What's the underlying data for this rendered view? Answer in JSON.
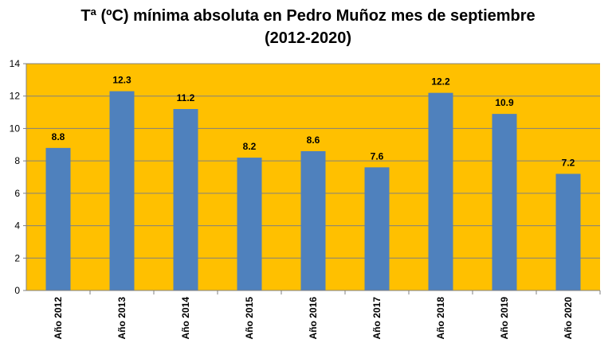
{
  "chart_data": {
    "type": "bar",
    "title_line1": "Tª (ºC) mínima absoluta en Pedro Muñoz mes de septiembre",
    "title_line2": "(2012-2020)",
    "categories": [
      "Año 2012",
      "Año 2013",
      "Año 2014",
      "Año 2015",
      "Año 2016",
      "Año 2017",
      "Año 2018",
      "Año 2019",
      "Año 2020"
    ],
    "values": [
      8.8,
      12.3,
      11.2,
      8.2,
      8.6,
      7.6,
      12.2,
      10.9,
      7.2
    ],
    "data_labels": [
      "8.8",
      "12.3",
      "11.2",
      "8.2",
      "8.6",
      "7.6",
      "12.2",
      "10.9",
      "7.2"
    ],
    "y_ticks": [
      "0",
      "2",
      "4",
      "6",
      "8",
      "10",
      "12",
      "14"
    ],
    "ylim": [
      0,
      14
    ],
    "xlabel": "",
    "ylabel": "",
    "grid": true,
    "legend": "none",
    "colors": {
      "plot_background": "#FFC000",
      "bar": "#4F81BD",
      "grid": "#808080"
    }
  }
}
